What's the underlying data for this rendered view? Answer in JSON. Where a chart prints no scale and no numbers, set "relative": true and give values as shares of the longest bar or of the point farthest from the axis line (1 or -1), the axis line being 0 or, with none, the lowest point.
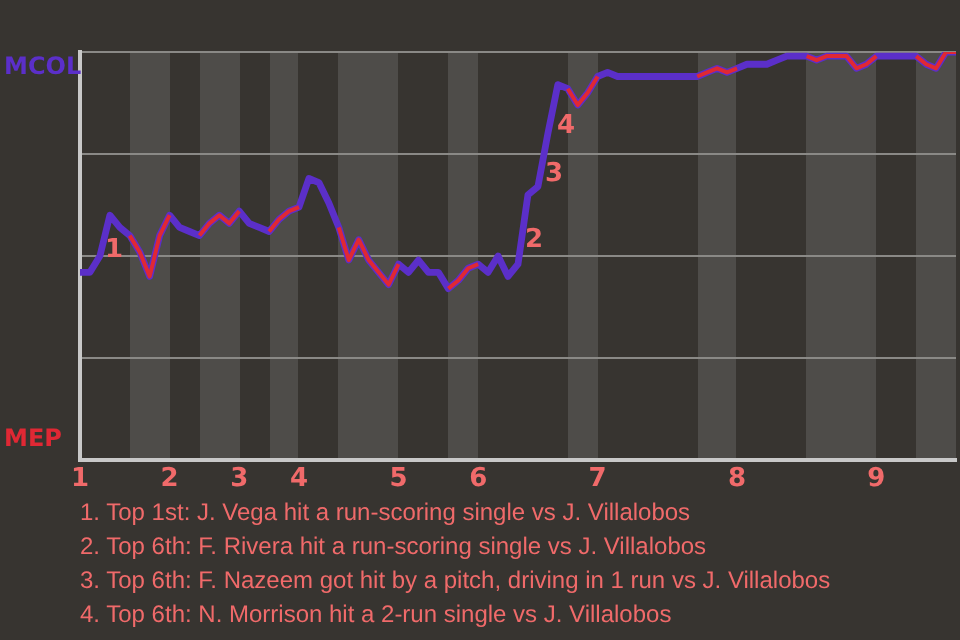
{
  "chart_data": {
    "type": "line",
    "relative": true,
    "categories": [
      "1",
      null,
      null,
      null,
      null,
      null,
      null,
      null,
      null,
      "2",
      null,
      null,
      null,
      null,
      null,
      null,
      "3",
      null,
      null,
      null,
      null,
      null,
      "4",
      null,
      null,
      null,
      null,
      null,
      null,
      null,
      null,
      null,
      "5",
      null,
      null,
      null,
      null,
      null,
      null,
      null,
      "6",
      null,
      null,
      null,
      null,
      null,
      null,
      null,
      null,
      null,
      null,
      null,
      "7",
      null,
      null,
      null,
      null,
      null,
      null,
      null,
      null,
      null,
      null,
      null,
      null,
      null,
      "8",
      null,
      null,
      null,
      null,
      null,
      null,
      null,
      null,
      null,
      null,
      null,
      null,
      null,
      "9",
      null,
      null,
      null,
      null,
      null,
      null,
      null,
      null
    ],
    "series": [
      {
        "color": "#5b2fc9",
        "values": [
          0.46,
          0.46,
          0.5,
          0.6,
          0.57,
          0.55,
          0.51,
          0.45,
          0.55,
          0.6,
          0.57,
          0.56,
          0.55,
          0.58,
          0.6,
          0.58,
          0.61,
          0.58,
          0.57,
          0.56,
          0.59,
          0.61,
          0.62,
          0.69,
          0.68,
          0.63,
          0.57,
          0.49,
          0.54,
          0.49,
          0.46,
          0.43,
          0.48,
          0.46,
          0.49,
          0.46,
          0.46,
          0.42,
          0.44,
          0.47,
          0.48,
          0.46,
          0.5,
          0.45,
          0.48,
          0.65,
          0.67,
          0.8,
          0.92,
          0.91,
          0.87,
          0.9,
          0.94,
          0.95,
          0.94,
          0.94,
          0.94,
          0.94,
          0.94,
          0.94,
          0.94,
          0.94,
          0.94,
          0.95,
          0.96,
          0.95,
          0.96,
          0.97,
          0.97,
          0.97,
          0.98,
          0.99,
          0.99,
          0.99,
          0.98,
          0.99,
          0.99,
          0.99,
          0.96,
          0.97,
          0.99,
          0.99,
          0.99,
          0.99,
          0.99,
          0.97,
          0.96,
          1,
          1
        ]
      },
      {
        "color": "#e02834",
        "values": [
          null,
          null,
          null,
          null,
          null,
          0.55,
          0.51,
          0.45,
          0.55,
          0.6,
          null,
          null,
          0.55,
          0.58,
          0.6,
          0.58,
          0.61,
          null,
          null,
          0.56,
          0.59,
          0.61,
          0.62,
          null,
          null,
          null,
          0.57,
          0.49,
          0.54,
          0.49,
          0.46,
          0.43,
          0.48,
          null,
          null,
          null,
          null,
          0.42,
          0.44,
          0.47,
          0.48,
          null,
          null,
          null,
          null,
          null,
          null,
          null,
          null,
          0.91,
          0.87,
          0.9,
          0.94,
          null,
          null,
          null,
          null,
          null,
          null,
          null,
          null,
          null,
          0.94,
          0.95,
          0.96,
          0.95,
          0.96,
          null,
          null,
          null,
          null,
          null,
          null,
          0.99,
          0.98,
          0.99,
          0.99,
          0.99,
          0.96,
          0.97,
          0.99,
          null,
          null,
          null,
          0.99,
          0.97,
          0.96,
          1,
          1
        ]
      }
    ],
    "grid": "y",
    "legend": false,
    "marker": "none",
    "annotations": [
      "MCOL",
      "MEP",
      "1",
      "2",
      "3",
      "4",
      "1. Top 1st: J. Vega hit a run-scoring single vs J. Villalobos",
      "2. Top 6th: F. Rivera hit a run-scoring single vs J. Villalobos",
      "3. Top 6th: F. Nazeem got hit by a pitch, driving in 1 run vs J. Villalobos",
      "4. Top 6th: N. Morrison hit a 2-run single vs J. Villalobos"
    ]
  }
}
